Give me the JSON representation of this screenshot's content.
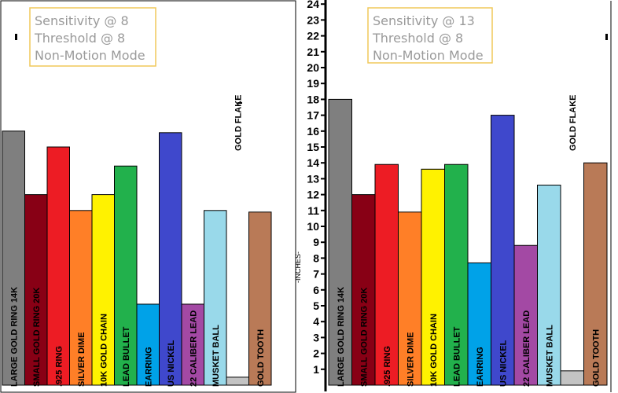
{
  "chart_data": [
    {
      "type": "bar",
      "settings": [
        "Sensitivity @ 8",
        "Threshold @ 8",
        "Non-Motion Mode"
      ],
      "ylabel": "",
      "ylim": [
        0,
        24
      ],
      "categories": [
        "LARGE GOLD RING  14K",
        "SMALL GOLD RING 20K",
        ".925 RING",
        "SILVER DIME",
        "10K GOLD CHAIN",
        "LEAD BULLET",
        "EARRING",
        "US NICKEL",
        "22 CALIBER LEAD",
        "MUSKET BALL",
        "GOLD FLAKE",
        "GOLD TOOTH"
      ],
      "values": [
        16,
        12,
        15,
        11,
        12,
        13.8,
        5.1,
        15.9,
        5.1,
        11,
        0.5,
        10.9
      ],
      "colors": [
        "#7f7f7f",
        "#880015",
        "#ed1c24",
        "#ff7f27",
        "#fff200",
        "#22b14c",
        "#00a2e8",
        "#3f48cc",
        "#a349a4",
        "#99d9ea",
        "#c3c3c3",
        "#b97a57"
      ]
    },
    {
      "type": "bar",
      "settings": [
        "Sensitivity @ 13",
        "Threshold @ 8",
        "Non-Motion Mode"
      ],
      "ylabel": "-INCHES-",
      "ylim": [
        0,
        24
      ],
      "yticks": [
        1,
        2,
        3,
        4,
        5,
        6,
        7,
        8,
        9,
        10,
        11,
        12,
        13,
        14,
        15,
        16,
        17,
        18,
        19,
        20,
        21,
        22,
        23,
        24
      ],
      "categories": [
        "LARGE GOLD RING  14K",
        "SMALL GOLD RING 20K",
        ".925 RING",
        "SILVER DIME",
        "10K GOLD CHAIN",
        "LEAD BULLET",
        "EARRING",
        "US NICKEL",
        "22 CALIBER LEAD",
        "MUSKET BALL",
        "GOLD FLAKE",
        "GOLD TOOTH"
      ],
      "values": [
        18,
        12,
        13.9,
        10.9,
        13.6,
        13.9,
        7.7,
        17,
        8.8,
        12.6,
        0.9,
        14
      ],
      "colors": [
        "#7f7f7f",
        "#880015",
        "#ed1c24",
        "#ff7f27",
        "#fff200",
        "#22b14c",
        "#00a2e8",
        "#3f48cc",
        "#a349a4",
        "#99d9ea",
        "#c3c3c3",
        "#b97a57"
      ]
    }
  ]
}
